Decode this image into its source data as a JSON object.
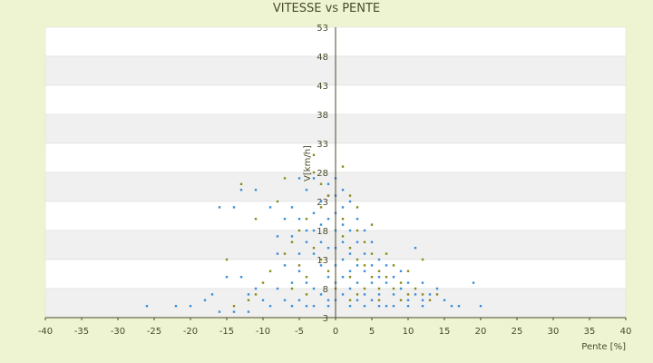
{
  "chart_data": {
    "type": "scatter",
    "title": "VITESSE vs PENTE",
    "xlabel": "Pente [%]",
    "ylabel": "V[km/h]",
    "xlim": [
      -40,
      40
    ],
    "ylim": [
      3,
      53
    ],
    "x_ticks": [
      "-40",
      "-35",
      "-30",
      "-25",
      "-20",
      "-15",
      "-10",
      "-5",
      "0",
      "5",
      "10",
      "15",
      "20",
      "25",
      "30",
      "35",
      "40"
    ],
    "y_ticks": [
      "53",
      "48",
      "43",
      "38",
      "33",
      "28",
      "23",
      "18",
      "13",
      "8",
      "3"
    ],
    "grid": "horizontal alternating bands",
    "series": [
      {
        "color": "#3a8fd8",
        "points": [
          [
            -14,
            22
          ],
          [
            -16,
            22
          ],
          [
            -13,
            25
          ],
          [
            -11,
            25
          ],
          [
            -9,
            22
          ],
          [
            -8,
            17
          ],
          [
            -8,
            14
          ],
          [
            -7,
            20
          ],
          [
            -7,
            12
          ],
          [
            -6,
            17
          ],
          [
            -6,
            22
          ],
          [
            -6,
            9
          ],
          [
            -5,
            27
          ],
          [
            -5,
            20
          ],
          [
            -5,
            14
          ],
          [
            -5,
            11
          ],
          [
            -4,
            25
          ],
          [
            -4,
            18
          ],
          [
            -4,
            9
          ],
          [
            -4,
            16
          ],
          [
            -3,
            27
          ],
          [
            -3,
            21
          ],
          [
            -3,
            14
          ],
          [
            -3,
            8
          ],
          [
            -3,
            18
          ],
          [
            -2,
            23
          ],
          [
            -2,
            19
          ],
          [
            -2,
            12
          ],
          [
            -2,
            7
          ],
          [
            -2,
            16
          ],
          [
            -1,
            26
          ],
          [
            -1,
            24
          ],
          [
            -1,
            20
          ],
          [
            -1,
            15
          ],
          [
            -1,
            10
          ],
          [
            -1,
            6
          ],
          [
            0,
            27
          ],
          [
            0,
            24
          ],
          [
            0,
            21
          ],
          [
            0,
            18
          ],
          [
            0,
            15
          ],
          [
            0,
            12
          ],
          [
            0,
            9
          ],
          [
            0,
            6
          ],
          [
            1,
            25
          ],
          [
            1,
            22
          ],
          [
            1,
            19
          ],
          [
            1,
            16
          ],
          [
            1,
            13
          ],
          [
            1,
            10
          ],
          [
            1,
            7
          ],
          [
            2,
            23
          ],
          [
            2,
            18
          ],
          [
            2,
            14
          ],
          [
            2,
            11
          ],
          [
            2,
            8
          ],
          [
            3,
            20
          ],
          [
            3,
            16
          ],
          [
            3,
            12
          ],
          [
            3,
            9
          ],
          [
            3,
            6
          ],
          [
            4,
            18
          ],
          [
            4,
            14
          ],
          [
            4,
            11
          ],
          [
            4,
            7
          ],
          [
            5,
            16
          ],
          [
            5,
            12
          ],
          [
            5,
            9
          ],
          [
            5,
            6
          ],
          [
            6,
            13
          ],
          [
            6,
            10
          ],
          [
            6,
            7
          ],
          [
            7,
            12
          ],
          [
            7,
            9
          ],
          [
            7,
            5
          ],
          [
            8,
            10
          ],
          [
            8,
            7
          ],
          [
            9,
            11
          ],
          [
            9,
            8
          ],
          [
            10,
            9
          ],
          [
            10,
            6
          ],
          [
            11,
            15
          ],
          [
            11,
            7
          ],
          [
            12,
            9
          ],
          [
            12,
            6
          ],
          [
            13,
            7
          ],
          [
            14,
            8
          ],
          [
            15,
            6
          ],
          [
            16,
            5
          ],
          [
            17,
            5
          ],
          [
            19,
            9
          ],
          [
            20,
            5
          ],
          [
            -20,
            5
          ],
          [
            -18,
            6
          ],
          [
            -17,
            7
          ],
          [
            -15,
            10
          ],
          [
            -13,
            10
          ],
          [
            -12,
            7
          ],
          [
            -11,
            8
          ],
          [
            -10,
            6
          ],
          [
            -9,
            5
          ],
          [
            -8,
            8
          ],
          [
            -7,
            6
          ],
          [
            -6,
            5
          ],
          [
            -5,
            6
          ],
          [
            -4,
            5
          ],
          [
            -3,
            5
          ],
          [
            -1,
            5
          ],
          [
            2,
            5
          ],
          [
            4,
            5
          ],
          [
            6,
            5
          ],
          [
            8,
            5
          ],
          [
            10,
            5
          ],
          [
            12,
            5
          ],
          [
            -16,
            4
          ],
          [
            -22,
            5
          ],
          [
            -26,
            5
          ],
          [
            -14,
            4
          ],
          [
            -12,
            4
          ]
        ]
      },
      {
        "color": "#8a8a1a",
        "points": [
          [
            -3,
            31
          ],
          [
            -3,
            28
          ],
          [
            -2,
            26
          ],
          [
            -1,
            24
          ],
          [
            -2,
            22
          ],
          [
            -4,
            20
          ],
          [
            -5,
            18
          ],
          [
            -6,
            16
          ],
          [
            -7,
            27
          ],
          [
            -8,
            23
          ],
          [
            -11,
            20
          ],
          [
            -13,
            26
          ],
          [
            -7,
            14
          ],
          [
            -5,
            12
          ],
          [
            -4,
            10
          ],
          [
            -3,
            15
          ],
          [
            -2,
            13
          ],
          [
            -1,
            11
          ],
          [
            1,
            29
          ],
          [
            1,
            20
          ],
          [
            1,
            17
          ],
          [
            2,
            24
          ],
          [
            2,
            15
          ],
          [
            2,
            10
          ],
          [
            3,
            22
          ],
          [
            3,
            18
          ],
          [
            3,
            13
          ],
          [
            3,
            7
          ],
          [
            4,
            16
          ],
          [
            4,
            12
          ],
          [
            4,
            8
          ],
          [
            5,
            19
          ],
          [
            5,
            14
          ],
          [
            5,
            10
          ],
          [
            6,
            11
          ],
          [
            6,
            8
          ],
          [
            7,
            14
          ],
          [
            7,
            10
          ],
          [
            8,
            12
          ],
          [
            8,
            8
          ],
          [
            9,
            9
          ],
          [
            10,
            11
          ],
          [
            10,
            7
          ],
          [
            11,
            8
          ],
          [
            12,
            13
          ],
          [
            12,
            7
          ],
          [
            13,
            6
          ],
          [
            14,
            7
          ],
          [
            -9,
            11
          ],
          [
            -10,
            9
          ],
          [
            -11,
            7
          ],
          [
            -12,
            6
          ],
          [
            -6,
            8
          ],
          [
            -4,
            7
          ],
          [
            0,
            8
          ],
          [
            2,
            6
          ],
          [
            6,
            6
          ],
          [
            9,
            6
          ],
          [
            -15,
            13
          ],
          [
            -14,
            5
          ]
        ]
      }
    ]
  }
}
